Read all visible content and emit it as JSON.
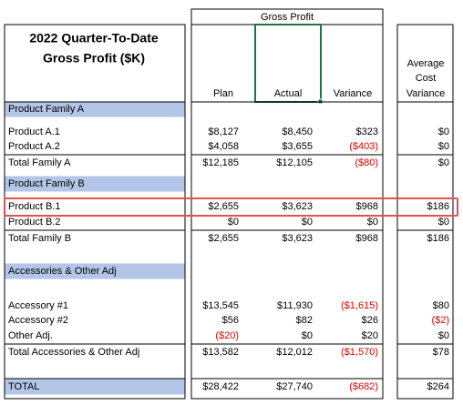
{
  "title": [
    "2022 Quarter-To-Date",
    "Gross Profit ($K)"
  ],
  "group_header": "Gross Profit",
  "columns": [
    "Plan",
    "Actual",
    "Variance"
  ],
  "extra_column": [
    "Average",
    "Cost",
    "Variance"
  ],
  "rows": [
    {
      "label": "Product Family A"
    },
    {
      "label": "Product A.1",
      "values": [
        "$8,127",
        "$8,450",
        "$323",
        "$0"
      ]
    },
    {
      "label": "Product A.2",
      "values": [
        "$4,058",
        "$3,655",
        "($403)",
        "$0"
      ]
    },
    {
      "label": "Total Family A",
      "values": [
        "$12,185",
        "$12,105",
        "($80)",
        "$0"
      ]
    },
    {
      "label": "Product Family B"
    },
    {
      "label": "Product B.1",
      "values": [
        "$2,655",
        "$3,623",
        "$968",
        "$186"
      ]
    },
    {
      "label": "Product B.2",
      "values": [
        "$0",
        "$0",
        "$0",
        "$0"
      ]
    },
    {
      "label": "Total Family B",
      "values": [
        "$2,655",
        "$3,623",
        "$968",
        "$186"
      ]
    },
    {
      "label": "Accessories & Other Adj"
    },
    {
      "label": "Accessory #1",
      "values": [
        "$13,545",
        "$11,930",
        "($1,615)",
        "$80"
      ]
    },
    {
      "label": "Accessory #2",
      "values": [
        "$56",
        "$82",
        "$26",
        "($2)"
      ]
    },
    {
      "label": "Other Adj.",
      "values": [
        "($20)",
        "$0",
        "$20",
        "$0"
      ]
    },
    {
      "label": "Total Accessories & Other Adj",
      "values": [
        "$13,582",
        "$12,012",
        "($1,570)",
        "$78"
      ]
    },
    {
      "label": "TOTAL",
      "values": [
        "$28,422",
        "$27,740",
        "($682)",
        "$264"
      ]
    }
  ]
}
